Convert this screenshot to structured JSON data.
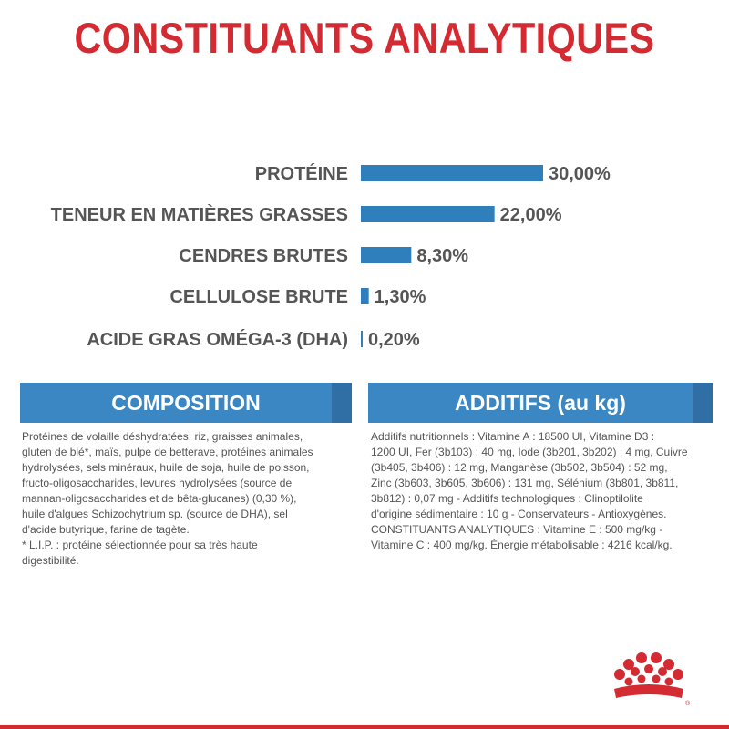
{
  "title": "CONSTITUANTS ANALYTIQUES",
  "colors": {
    "title_red": "#d42a32",
    "bar_blue": "#2f7fbd",
    "header_blue": "#3b87c4",
    "header_stripe": "#2f6fa6",
    "label_gray": "#555555",
    "logo_red": "#d42a32"
  },
  "chart_data": {
    "type": "bar",
    "orientation": "horizontal",
    "categories": [
      "PROTÉINE",
      "TENEUR EN MATIÈRES GRASSES",
      "CENDRES BRUTES",
      "CELLULOSE BRUTE",
      "ACIDE GRAS OMÉGA-3 (DHA)"
    ],
    "values": [
      30.0,
      22.0,
      8.3,
      1.3,
      0.2
    ],
    "value_labels": [
      "30,00%",
      "22,00%",
      "8,30%",
      "1,30%",
      "0,20%"
    ],
    "unit": "%",
    "xlim": [
      0,
      30
    ],
    "grid": false,
    "legend": "none"
  },
  "composition": {
    "header": "COMPOSITION",
    "lines": [
      "Protéines de volaille déshydratées, riz, graisses animales,",
      "gluten de blé*, maïs, pulpe de betterave, protéines animales",
      "hydrolysées, sels minéraux, huile de soja, huile de poisson,",
      "fructo-oligosaccharides, levures hydrolysées (source de",
      "mannan-oligosaccharides et de bêta-glucanes) (0,30 %),",
      "huile d'algues Schizochytrium sp. (source de DHA), sel",
      "d'acide butyrique, farine de tagète.",
      "* L.I.P. : protéine sélectionnée pour sa très haute",
      "digestibilité."
    ]
  },
  "additives": {
    "header": "ADDITIFS (au kg)",
    "lines": [
      "Additifs nutritionnels : Vitamine A : 18500 UI, Vitamine D3 :",
      "1200 UI, Fer (3b103) : 40 mg, Iode (3b201, 3b202) : 4 mg, Cuivre",
      "(3b405, 3b406) : 12 mg, Manganèse (3b502, 3b504) : 52 mg,",
      "Zinc (3b603, 3b605, 3b606) : 131 mg, Sélénium (3b801, 3b811,",
      "3b812) : 0,07 mg - Additifs technologiques : Clinoptilolite",
      "d'origine sédimentaire : 10 g - Conservateurs - Antioxygènes.",
      "CONSTITUANTS ANALYTIQUES : Vitamine E : 500 mg/kg -",
      "Vitamine C : 400 mg/kg. Énergie métabolisable : 4216 kcal/kg."
    ]
  },
  "logo": {
    "icon": "royal-canin-crown-logo"
  }
}
